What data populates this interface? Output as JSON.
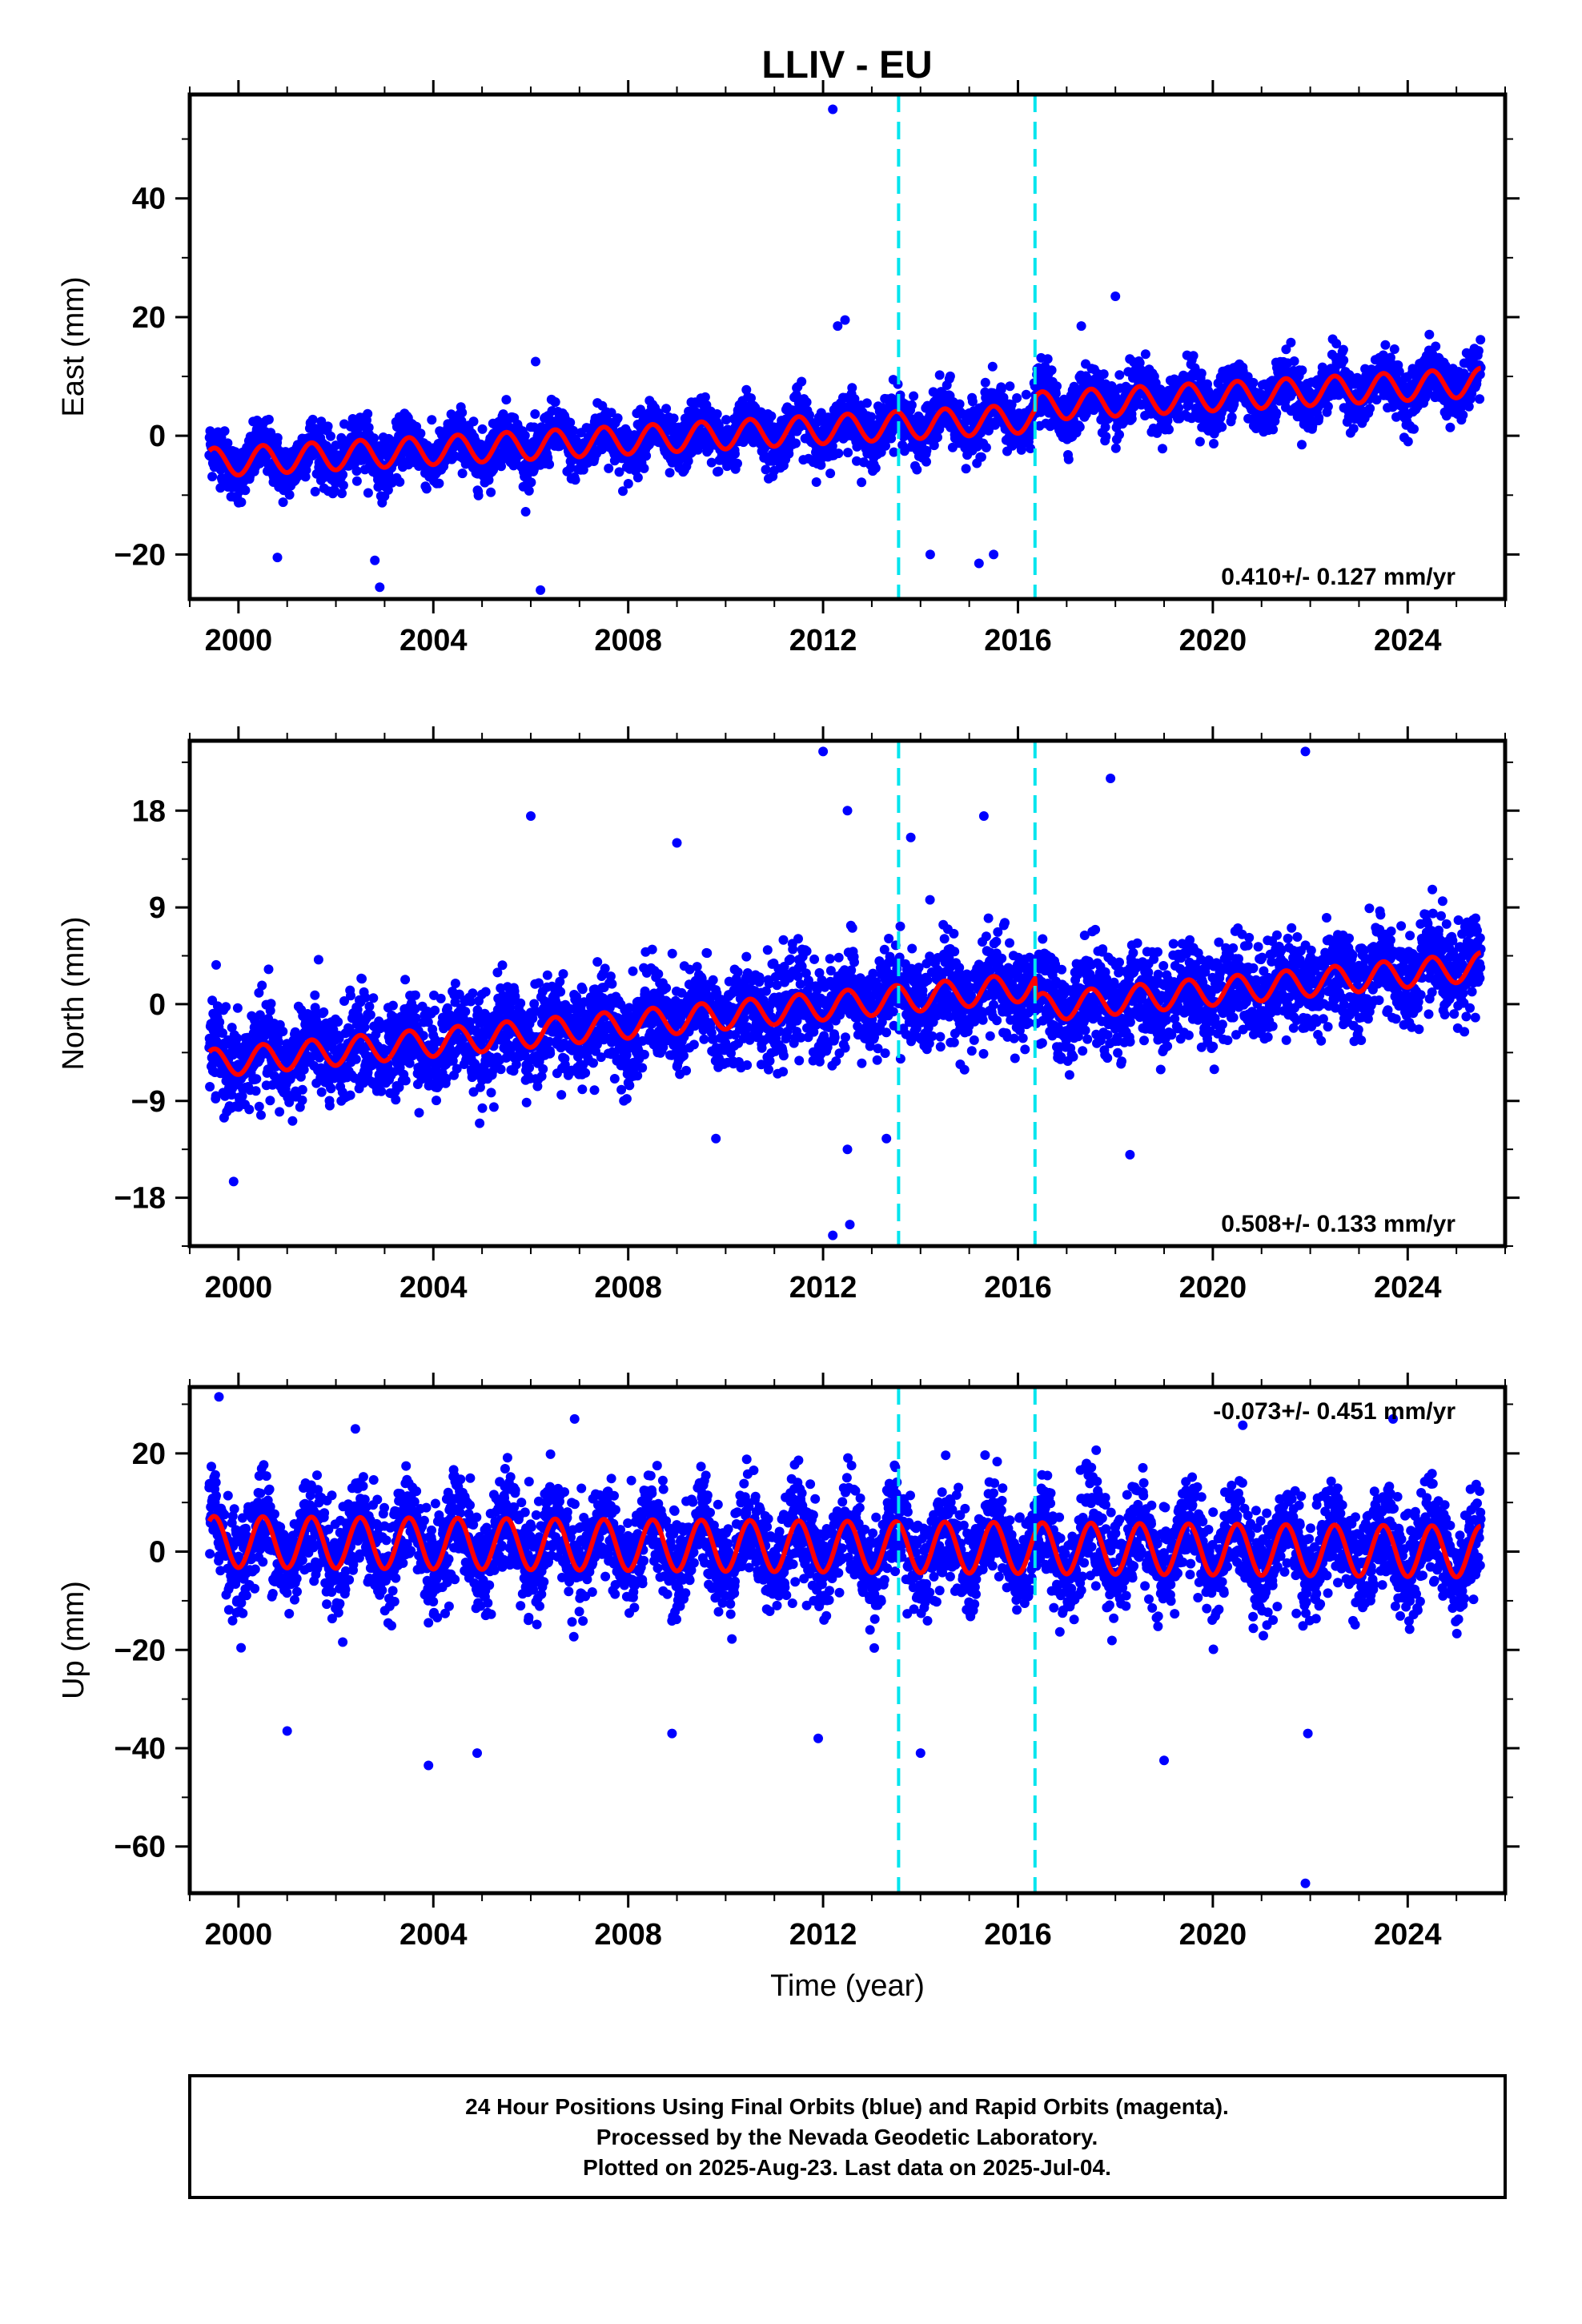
{
  "title": "LLIV - EU",
  "colors": {
    "points": "#0000ff",
    "model": "#ff0000",
    "offset_lines": "#00e5ee",
    "frame": "#000000"
  },
  "chart_data": [
    {
      "type": "scatter",
      "panel": "east",
      "ylabel": "East (mm)",
      "xlabel": "",
      "xlim": [
        1999.0,
        2026.0
      ],
      "ylim": [
        -27.5,
        57.5
      ],
      "x_ticks": [
        2000,
        2004,
        2008,
        2012,
        2016,
        2020,
        2024
      ],
      "y_ticks": [
        -20,
        0,
        20,
        40
      ],
      "y_tick_labels": [
        "−20",
        "0",
        "20",
        "40"
      ],
      "rate_label": "0.410+/- 0.127 mm/yr",
      "rate_position": "bottom-right",
      "offsets": [
        2013.55,
        2016.35
      ],
      "series": [
        {
          "name": "daily positions",
          "color": "#0000ff",
          "kind": "points",
          "trend": {
            "t0": 1999.4,
            "t1": 2025.5,
            "y0": -4.5,
            "y1": 7.0
          },
          "annual_amplitude": 2.4,
          "noise_sd": 2.3,
          "outliers": [
            [
              2012.2,
              55.0
            ],
            [
              2012.3,
              18.5
            ],
            [
              2012.45,
              19.5
            ],
            [
              2017.3,
              18.5
            ],
            [
              2018.0,
              23.5
            ],
            [
              2006.1,
              12.5
            ],
            [
              2000.8,
              -20.5
            ],
            [
              2002.8,
              -21.0
            ],
            [
              2002.9,
              -25.5
            ],
            [
              2006.2,
              -26.0
            ],
            [
              2014.2,
              -20.0
            ],
            [
              2015.2,
              -21.5
            ],
            [
              2015.5,
              -20.0
            ]
          ]
        },
        {
          "name": "model",
          "color": "#ff0000",
          "kind": "line",
          "trend": {
            "t0": 1999.4,
            "t1": 2025.5,
            "y0": -4.5,
            "y1": 7.0
          },
          "annual_amplitude": 2.4,
          "steps": [
            [
              2016.35,
              2.0
            ]
          ]
        }
      ]
    },
    {
      "type": "scatter",
      "panel": "north",
      "ylabel": "North (mm)",
      "xlabel": "",
      "xlim": [
        1999.0,
        2026.0
      ],
      "ylim": [
        -22.5,
        24.5
      ],
      "x_ticks": [
        2000,
        2004,
        2008,
        2012,
        2016,
        2020,
        2024
      ],
      "y_ticks": [
        -18,
        -9,
        0,
        9,
        18
      ],
      "y_tick_labels": [
        "−18",
        "−9",
        "0",
        "9",
        "18"
      ],
      "rate_label": "0.508+/- 0.133 mm/yr",
      "rate_position": "bottom-right",
      "offsets": [
        2013.55,
        2016.35
      ],
      "series": [
        {
          "name": "daily positions",
          "color": "#0000ff",
          "kind": "points",
          "trend": {
            "t0": 1999.4,
            "t1": 2025.5,
            "y0": -5.5,
            "y1": 5.5
          },
          "annual_amplitude": 1.3,
          "noise_sd": 2.2,
          "outliers": [
            [
              2012.0,
              23.5
            ],
            [
              2012.5,
              18.0
            ],
            [
              2006.0,
              17.5
            ],
            [
              2015.3,
              17.5
            ],
            [
              2017.9,
              21.0
            ],
            [
              2021.9,
              23.5
            ],
            [
              2013.8,
              15.5
            ],
            [
              2009.0,
              15.0
            ],
            [
              1999.9,
              -16.5
            ],
            [
              2012.2,
              -21.5
            ],
            [
              2012.55,
              -20.5
            ],
            [
              2013.3,
              -12.5
            ],
            [
              2012.5,
              -13.5
            ],
            [
              2018.3,
              -14.0
            ],
            [
              2009.8,
              -12.5
            ]
          ]
        },
        {
          "name": "model",
          "color": "#ff0000",
          "kind": "line",
          "trend": {
            "t0": 1999.4,
            "t1": 2025.5,
            "y0": -5.5,
            "y1": 5.5
          },
          "annual_amplitude": 1.3,
          "steps": [
            [
              2016.35,
              -2.0
            ]
          ]
        }
      ]
    },
    {
      "type": "scatter",
      "panel": "up",
      "ylabel": "Up (mm)",
      "xlabel": "Time (year)",
      "xlim": [
        1999.0,
        2026.0
      ],
      "ylim": [
        -69.5,
        33.5
      ],
      "x_ticks": [
        2000,
        2004,
        2008,
        2012,
        2016,
        2020,
        2024
      ],
      "y_ticks": [
        -60,
        -40,
        -20,
        0,
        20
      ],
      "y_tick_labels": [
        "−60",
        "−40",
        "−20",
        "0",
        "20"
      ],
      "rate_label": "-0.073+/- 0.451 mm/yr",
      "rate_position": "top-right",
      "offsets": [
        2013.55,
        2016.35
      ],
      "series": [
        {
          "name": "daily positions",
          "color": "#0000ff",
          "kind": "points",
          "trend": {
            "t0": 1999.4,
            "t1": 2025.5,
            "y0": 2.0,
            "y1": 0.0
          },
          "annual_amplitude": 5.2,
          "noise_sd": 5.0,
          "outliers": [
            [
              1999.6,
              31.5
            ],
            [
              2003.9,
              -43.5
            ],
            [
              2004.9,
              -41.0
            ],
            [
              2001.0,
              -36.5
            ],
            [
              2008.9,
              -37.0
            ],
            [
              2011.9,
              -38.0
            ],
            [
              2021.9,
              -67.5
            ],
            [
              2021.95,
              -37.0
            ],
            [
              2019.0,
              -42.5
            ],
            [
              2014.0,
              -41.0
            ],
            [
              2023.7,
              27.0
            ],
            [
              2006.9,
              27.0
            ],
            [
              2002.4,
              25.0
            ]
          ]
        },
        {
          "name": "model",
          "color": "#ff0000",
          "kind": "line",
          "trend": {
            "t0": 1999.4,
            "t1": 2025.5,
            "y0": 2.0,
            "y1": 0.0
          },
          "annual_amplitude": 5.2,
          "steps": [
            [
              2016.35,
              0.0
            ]
          ]
        }
      ]
    }
  ],
  "footer": {
    "line1": "24 Hour Positions Using Final Orbits (blue) and Rapid Orbits (magenta).",
    "line2": "Processed by the Nevada Geodetic Laboratory.",
    "line3": "Plotted on 2025-Aug-23. Last data on 2025-Jul-04."
  }
}
